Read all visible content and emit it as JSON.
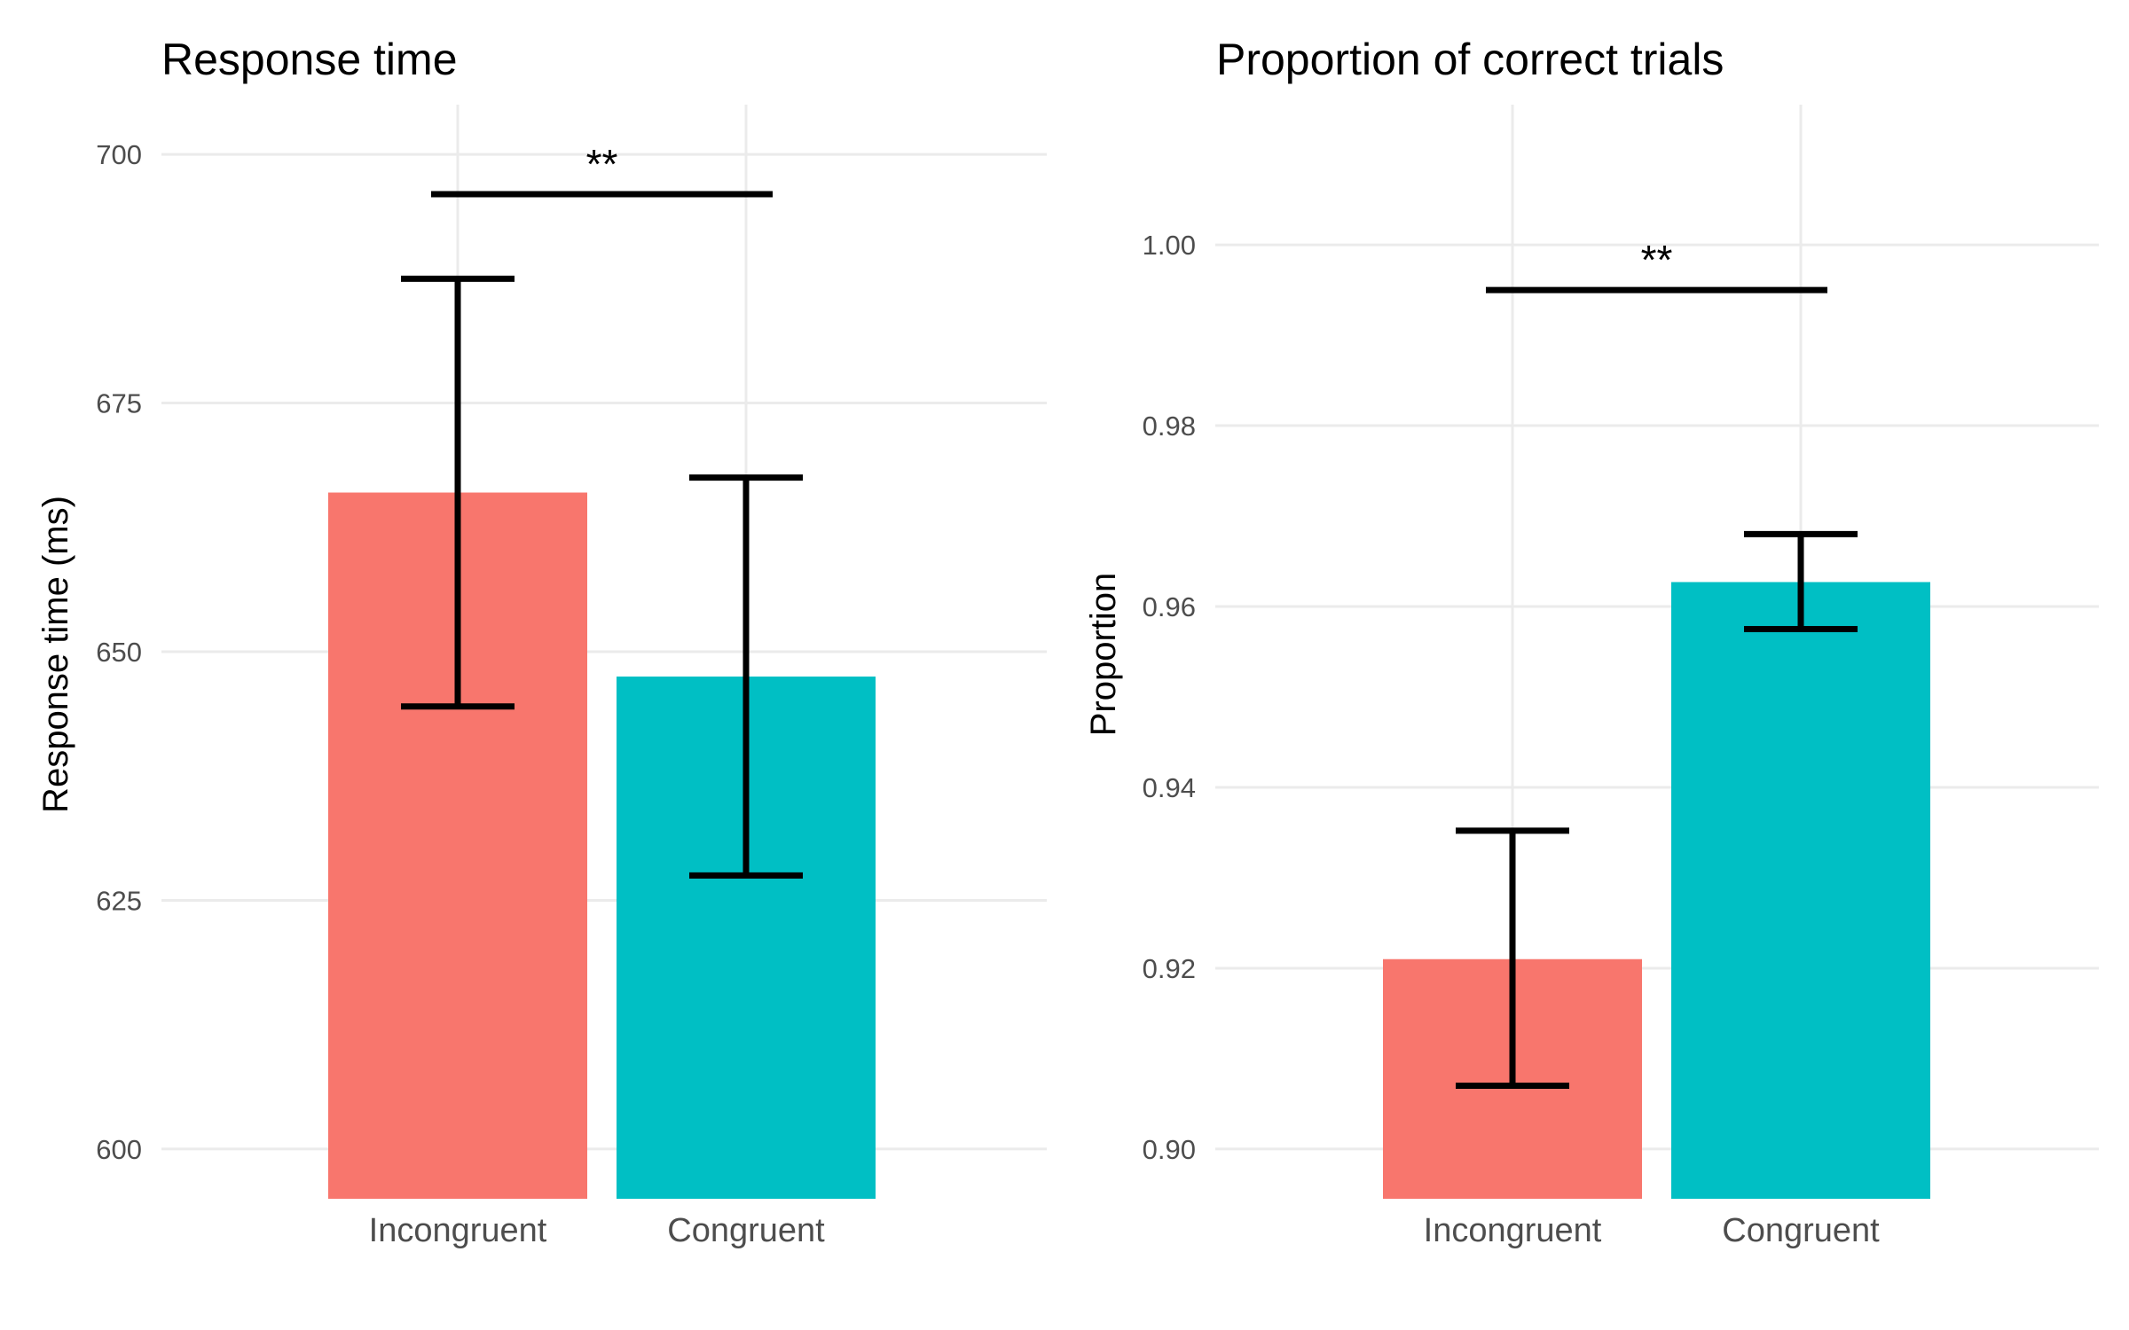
{
  "chart_data": [
    {
      "type": "bar",
      "title": "Response time",
      "ylabel": "Response time (ms)",
      "xlabel": "",
      "categories": [
        "Incongruent",
        "Congruent"
      ],
      "values": [
        666,
        647.5
      ],
      "error_low": [
        644.5,
        627.5
      ],
      "error_high": [
        687.5,
        667.5
      ],
      "colors": [
        "#F8766D",
        "#00BFC4"
      ],
      "ylim": [
        595,
        705
      ],
      "yticks": [
        600,
        625,
        650,
        675,
        700
      ],
      "tick_labels": [
        "600",
        "625",
        "650",
        "675",
        "700"
      ],
      "significance": {
        "label": "**",
        "y": 696
      },
      "grid": true,
      "legend": "none"
    },
    {
      "type": "bar",
      "title": "Proportion of correct trials",
      "ylabel": "Proportion",
      "xlabel": "",
      "categories": [
        "Incongruent",
        "Congruent"
      ],
      "values": [
        0.921,
        0.9627
      ],
      "error_low": [
        0.907,
        0.9575
      ],
      "error_high": [
        0.9352,
        0.968
      ],
      "colors": [
        "#F8766D",
        "#00BFC4"
      ],
      "ylim": [
        0.8945,
        1.0155
      ],
      "yticks": [
        0.9,
        0.92,
        0.94,
        0.96,
        0.98,
        1.0
      ],
      "tick_labels": [
        "0.90",
        "0.92",
        "0.94",
        "0.96",
        "0.98",
        "1.00"
      ],
      "significance": {
        "label": "**",
        "y": 0.995
      },
      "grid": true,
      "legend": "none"
    }
  ]
}
